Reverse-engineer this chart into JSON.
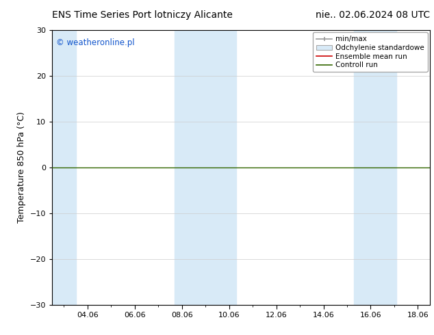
{
  "title_left": "ENS Time Series Port lotniczy Alicante",
  "title_right": "nie.. 02.06.2024 08 UTC",
  "ylabel": "Temperature 850 hPa (°C)",
  "ylim": [
    -30,
    30
  ],
  "yticks": [
    -30,
    -20,
    -10,
    0,
    10,
    20,
    30
  ],
  "xlim": [
    2.5,
    18.5
  ],
  "xtick_labels": [
    "04.06",
    "06.06",
    "08.06",
    "10.06",
    "12.06",
    "14.06",
    "16.06",
    "18.06"
  ],
  "xtick_positions": [
    4,
    6,
    8,
    10,
    12,
    14,
    16,
    18
  ],
  "watermark": "© weatheronline.pl",
  "watermark_color": "#1155cc",
  "bg_color": "#ffffff",
  "plot_bg_color": "#ffffff",
  "shaded_bands": [
    {
      "x_start": 2.5,
      "x_end": 3.5,
      "color": "#d8eaf7"
    },
    {
      "x_start": 7.7,
      "x_end": 10.3,
      "color": "#d8eaf7"
    },
    {
      "x_start": 15.3,
      "x_end": 17.1,
      "color": "#d8eaf7"
    }
  ],
  "zero_line_y": 0,
  "control_run_color": "#336600",
  "ensemble_mean_color": "#cc0000",
  "minmax_color": "#999999",
  "std_color": "#d8eaf7",
  "legend_labels": [
    "min/max",
    "Odchylenie standardowe",
    "Ensemble mean run",
    "Controll run"
  ],
  "title_fontsize": 10,
  "axis_label_fontsize": 9,
  "tick_fontsize": 8,
  "legend_fontsize": 7.5
}
